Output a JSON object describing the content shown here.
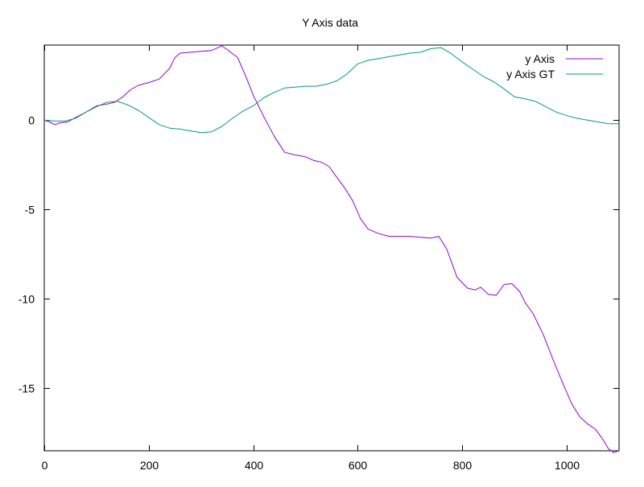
{
  "chart_data": {
    "type": "line",
    "title": "Y Axis data",
    "xlabel": "",
    "ylabel": "",
    "xlim": [
      0,
      1100
    ],
    "ylim": [
      -18.5,
      4.2
    ],
    "x_ticks": [
      0,
      200,
      400,
      600,
      800,
      1000
    ],
    "y_ticks": [
      0,
      -5,
      -10,
      -15
    ],
    "grid": false,
    "legend_position": "top-right",
    "series": [
      {
        "name": "y Axis",
        "color": "#9400d3",
        "points": [
          [
            0,
            0
          ],
          [
            10,
            -0.1
          ],
          [
            20,
            -0.25
          ],
          [
            30,
            -0.15
          ],
          [
            45,
            -0.1
          ],
          [
            60,
            0.15
          ],
          [
            80,
            0.45
          ],
          [
            100,
            0.8
          ],
          [
            120,
            0.9
          ],
          [
            135,
            1.0
          ],
          [
            150,
            1.3
          ],
          [
            165,
            1.7
          ],
          [
            180,
            1.95
          ],
          [
            200,
            2.1
          ],
          [
            220,
            2.3
          ],
          [
            240,
            2.9
          ],
          [
            250,
            3.5
          ],
          [
            260,
            3.75
          ],
          [
            280,
            3.8
          ],
          [
            300,
            3.85
          ],
          [
            320,
            3.9
          ],
          [
            340,
            4.15
          ],
          [
            350,
            3.95
          ],
          [
            370,
            3.5
          ],
          [
            385,
            2.5
          ],
          [
            400,
            1.4
          ],
          [
            420,
            0.2
          ],
          [
            440,
            -0.9
          ],
          [
            460,
            -1.8
          ],
          [
            480,
            -1.95
          ],
          [
            500,
            -2.05
          ],
          [
            515,
            -2.25
          ],
          [
            530,
            -2.35
          ],
          [
            545,
            -2.6
          ],
          [
            560,
            -3.2
          ],
          [
            575,
            -3.8
          ],
          [
            590,
            -4.5
          ],
          [
            605,
            -5.5
          ],
          [
            620,
            -6.1
          ],
          [
            640,
            -6.35
          ],
          [
            660,
            -6.5
          ],
          [
            680,
            -6.5
          ],
          [
            700,
            -6.5
          ],
          [
            720,
            -6.55
          ],
          [
            740,
            -6.6
          ],
          [
            755,
            -6.5
          ],
          [
            770,
            -7.2
          ],
          [
            790,
            -8.8
          ],
          [
            810,
            -9.4
          ],
          [
            825,
            -9.5
          ],
          [
            835,
            -9.35
          ],
          [
            850,
            -9.75
          ],
          [
            865,
            -9.8
          ],
          [
            880,
            -9.2
          ],
          [
            895,
            -9.15
          ],
          [
            910,
            -9.6
          ],
          [
            920,
            -10.2
          ],
          [
            935,
            -10.8
          ],
          [
            955,
            -12.0
          ],
          [
            975,
            -13.5
          ],
          [
            995,
            -14.9
          ],
          [
            1010,
            -15.9
          ],
          [
            1025,
            -16.6
          ],
          [
            1040,
            -17.0
          ],
          [
            1055,
            -17.3
          ],
          [
            1070,
            -17.9
          ],
          [
            1080,
            -18.4
          ],
          [
            1090,
            -18.6
          ],
          [
            1100,
            -18.5
          ]
        ]
      },
      {
        "name": "y Axis GT",
        "color": "#009e73",
        "points": [
          [
            0,
            0
          ],
          [
            20,
            -0.05
          ],
          [
            40,
            -0.05
          ],
          [
            60,
            0.1
          ],
          [
            80,
            0.45
          ],
          [
            100,
            0.75
          ],
          [
            120,
            1.0
          ],
          [
            140,
            1.05
          ],
          [
            160,
            0.85
          ],
          [
            180,
            0.55
          ],
          [
            200,
            0.15
          ],
          [
            220,
            -0.25
          ],
          [
            240,
            -0.45
          ],
          [
            260,
            -0.5
          ],
          [
            280,
            -0.6
          ],
          [
            300,
            -0.7
          ],
          [
            320,
            -0.65
          ],
          [
            340,
            -0.35
          ],
          [
            360,
            0.1
          ],
          [
            380,
            0.5
          ],
          [
            400,
            0.8
          ],
          [
            420,
            1.25
          ],
          [
            440,
            1.55
          ],
          [
            460,
            1.8
          ],
          [
            480,
            1.85
          ],
          [
            500,
            1.9
          ],
          [
            520,
            1.9
          ],
          [
            540,
            2.0
          ],
          [
            560,
            2.2
          ],
          [
            580,
            2.6
          ],
          [
            600,
            3.15
          ],
          [
            620,
            3.35
          ],
          [
            640,
            3.45
          ],
          [
            660,
            3.55
          ],
          [
            680,
            3.65
          ],
          [
            700,
            3.75
          ],
          [
            720,
            3.8
          ],
          [
            740,
            4.0
          ],
          [
            760,
            4.05
          ],
          [
            780,
            3.7
          ],
          [
            800,
            3.25
          ],
          [
            820,
            2.85
          ],
          [
            840,
            2.45
          ],
          [
            860,
            2.15
          ],
          [
            880,
            1.75
          ],
          [
            900,
            1.3
          ],
          [
            920,
            1.2
          ],
          [
            940,
            1.05
          ],
          [
            960,
            0.75
          ],
          [
            980,
            0.45
          ],
          [
            1000,
            0.25
          ],
          [
            1020,
            0.1
          ],
          [
            1040,
            0.0
          ],
          [
            1060,
            -0.1
          ],
          [
            1080,
            -0.2
          ],
          [
            1100,
            -0.2
          ]
        ]
      }
    ]
  }
}
